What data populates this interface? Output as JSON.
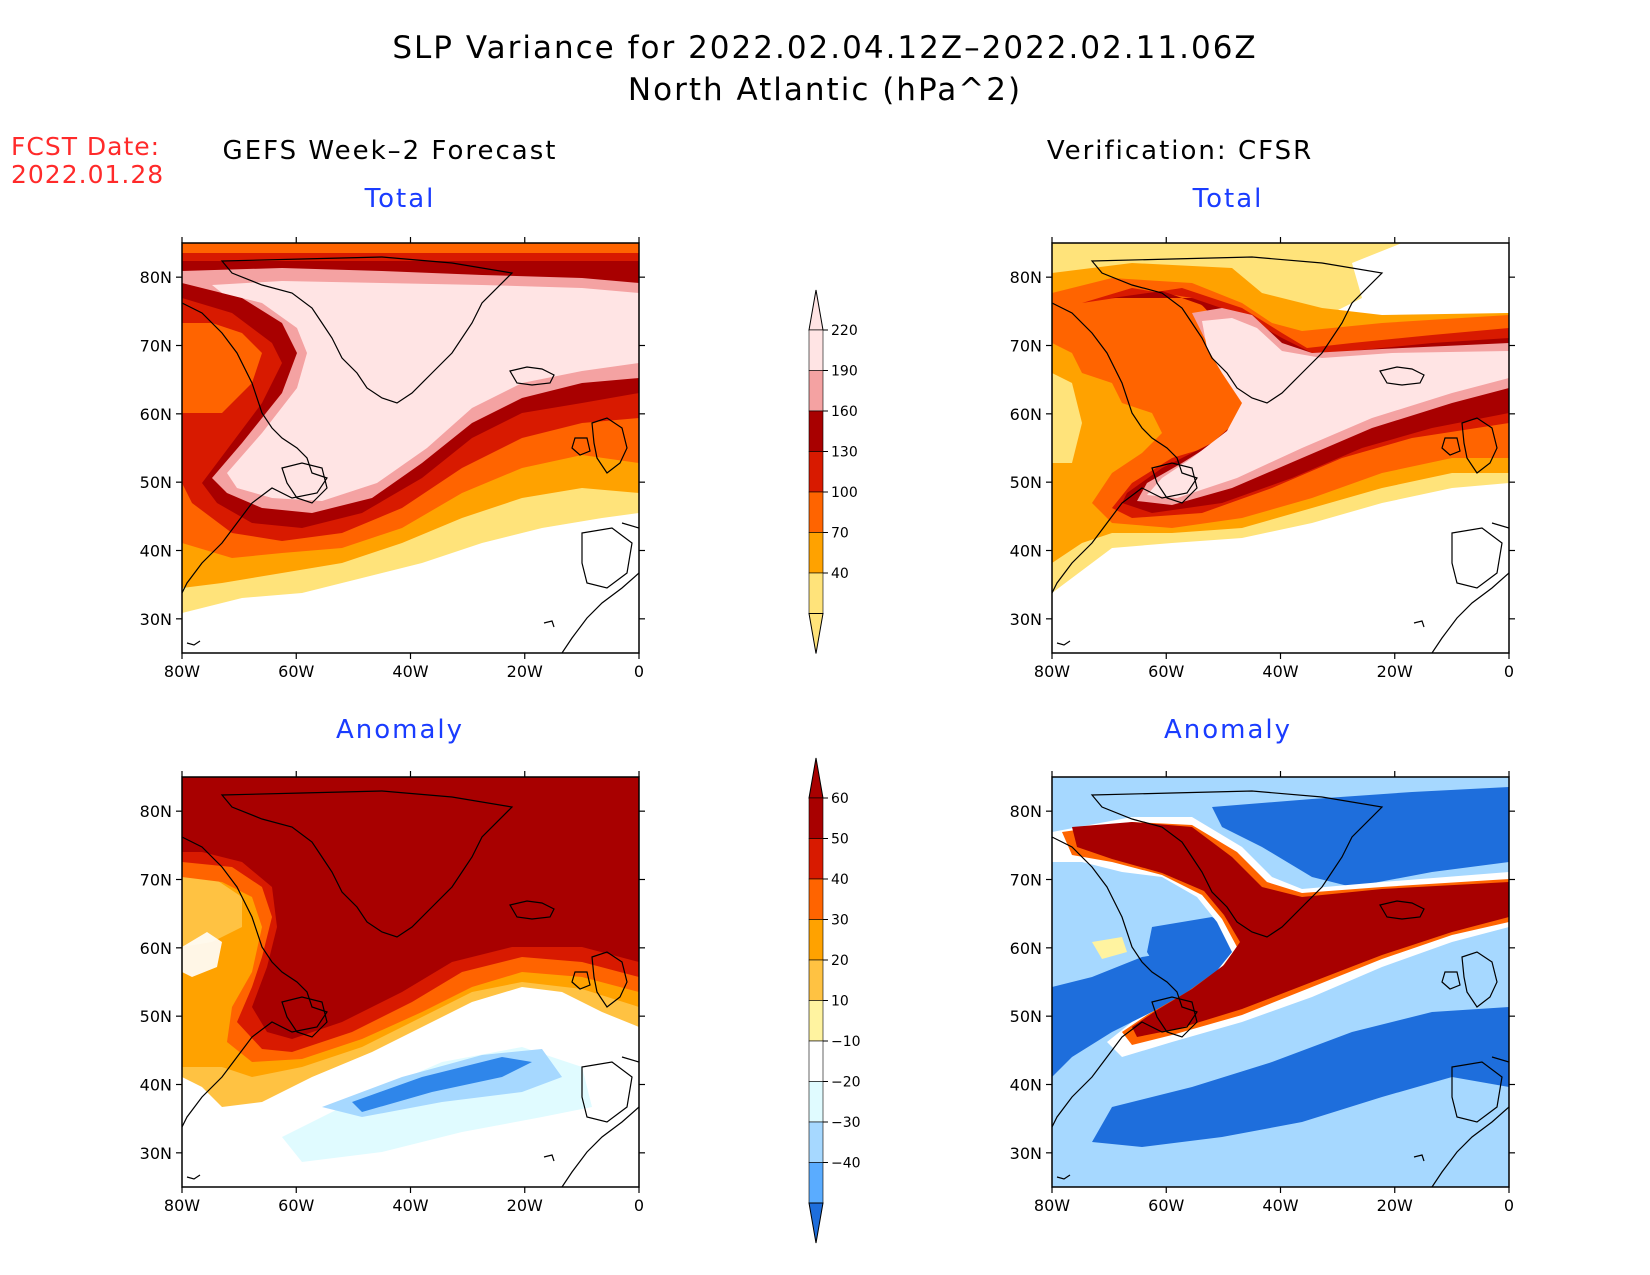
{
  "title": {
    "line1": "SLP Variance for 2022.02.04.12Z–2022.02.11.06Z",
    "line2": "North Atlantic (hPa^2)"
  },
  "fcst_date": {
    "label": "FCST Date:",
    "value": "2022.01.28"
  },
  "columns": {
    "left": "GEFS Week–2 Forecast",
    "right": "Verification: CFSR"
  },
  "panels": [
    {
      "id": "fcst-total",
      "title": "Total"
    },
    {
      "id": "verif-total",
      "title": "Total"
    },
    {
      "id": "fcst-anomaly",
      "title": "Anomaly"
    },
    {
      "id": "verif-anomaly",
      "title": "Anomaly"
    }
  ],
  "axes": {
    "x_ticks": [
      "80W",
      "60W",
      "40W",
      "20W",
      "0"
    ],
    "y_ticks": [
      "80N",
      "70N",
      "60N",
      "50N",
      "40N",
      "30N"
    ],
    "lon_range": [
      -80,
      0
    ],
    "lat_range": [
      25,
      85
    ]
  },
  "colorbars": {
    "total": {
      "levels": [
        "220",
        "190",
        "160",
        "130",
        "100",
        "70",
        "40"
      ],
      "colors": [
        "#ffe4e4",
        "#f4a2a2",
        "#a80000",
        "#d81a00",
        "#ff6400",
        "#ffa200",
        "#ffe37a"
      ]
    },
    "anomaly": {
      "levels": [
        "60",
        "50",
        "40",
        "30",
        "20",
        "10",
        "−10",
        "−20",
        "−30",
        "−40"
      ],
      "colors": [
        "#a80000",
        "#d81a00",
        "#ff6400",
        "#ffa200",
        "#ffc242",
        "#fff3a0",
        "#ffffff",
        "#e0fbff",
        "#a6d8ff",
        "#5aacff",
        "#1e6edc",
        "#1564d2"
      ]
    }
  },
  "chart_data": [
    {
      "type": "heatmap",
      "title": "GEFS Week–2 Forecast — Total",
      "units": "hPa^2",
      "xlim": [
        -80,
        0
      ],
      "ylim": [
        25,
        85
      ],
      "levels": [
        40,
        70,
        100,
        130,
        160,
        190,
        220
      ]
    },
    {
      "type": "heatmap",
      "title": "Verification: CFSR — Total",
      "units": "hPa^2",
      "xlim": [
        -80,
        0
      ],
      "ylim": [
        25,
        85
      ],
      "levels": [
        40,
        70,
        100,
        130,
        160,
        190,
        220
      ]
    },
    {
      "type": "heatmap",
      "title": "GEFS Week–2 Forecast — Anomaly",
      "units": "hPa^2",
      "xlim": [
        -80,
        0
      ],
      "ylim": [
        25,
        85
      ],
      "levels": [
        -40,
        -30,
        -20,
        -10,
        10,
        20,
        30,
        40,
        50,
        60
      ]
    },
    {
      "type": "heatmap",
      "title": "Verification: CFSR — Anomaly",
      "units": "hPa^2",
      "xlim": [
        -80,
        0
      ],
      "ylim": [
        25,
        85
      ],
      "levels": [
        -40,
        -30,
        -20,
        -10,
        10,
        20,
        30,
        40,
        50,
        60
      ]
    }
  ]
}
